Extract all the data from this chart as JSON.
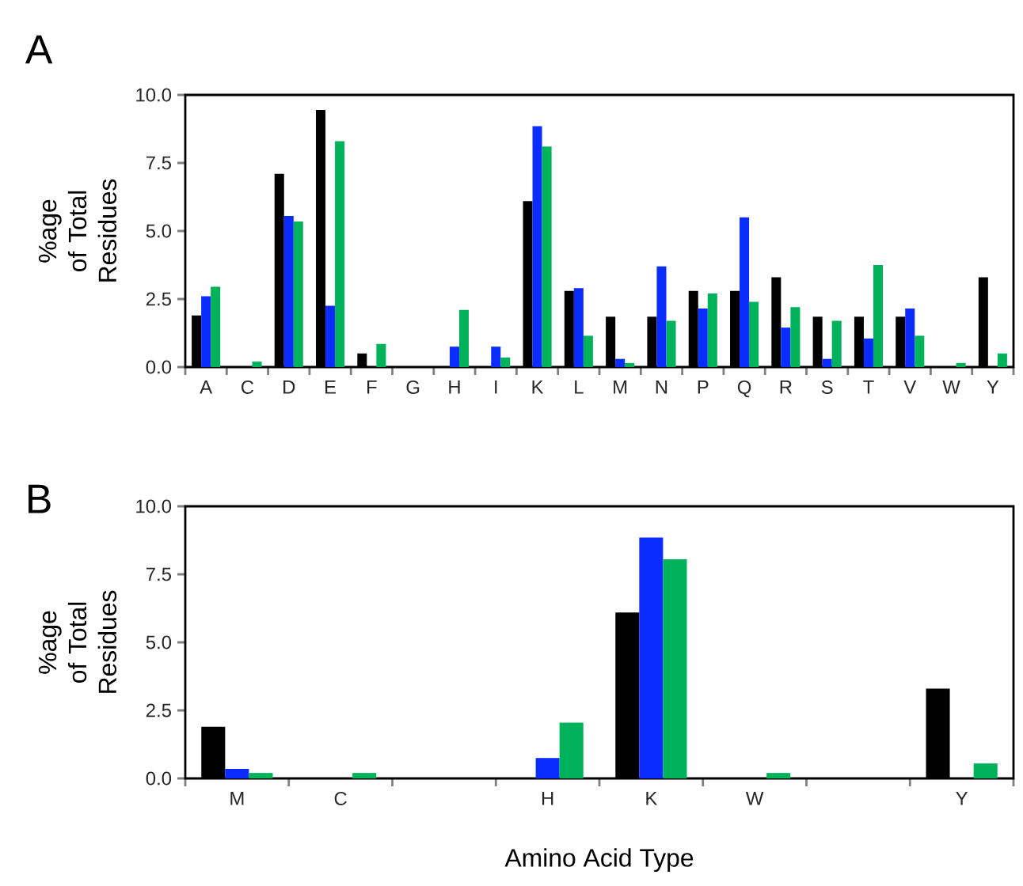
{
  "chart_data": [
    {
      "type": "bar",
      "title": "A",
      "ylabel": "%age of Total Residues",
      "categories": [
        "A",
        "C",
        "D",
        "E",
        "F",
        "G",
        "H",
        "I",
        "K",
        "L",
        "M",
        "N",
        "P",
        "Q",
        "R",
        "S",
        "T",
        "V",
        "W",
        "Y"
      ],
      "series": [
        {
          "color": "#000000",
          "values": [
            1.9,
            0,
            7.1,
            9.45,
            0.5,
            0,
            0,
            0,
            6.1,
            2.8,
            1.85,
            1.85,
            2.8,
            2.8,
            3.3,
            1.85,
            1.85,
            1.85,
            0,
            3.3
          ]
        },
        {
          "color": "#0a2cff",
          "values": [
            2.6,
            0,
            5.55,
            2.25,
            0,
            0,
            0.75,
            0.75,
            8.85,
            2.9,
            0.3,
            3.7,
            2.15,
            5.5,
            1.45,
            0.3,
            1.05,
            2.15,
            0,
            0
          ]
        },
        {
          "color": "#00b35a",
          "values": [
            2.95,
            0.2,
            5.35,
            8.3,
            0.85,
            0,
            2.1,
            0.35,
            8.1,
            1.15,
            0.15,
            1.7,
            2.7,
            2.4,
            2.2,
            1.7,
            3.75,
            1.15,
            0.15,
            0.5
          ]
        }
      ],
      "ylim": [
        0,
        10
      ],
      "yticks": [
        {
          "value": 0,
          "label": "0.0"
        },
        {
          "value": 2.5,
          "label": "2.5"
        },
        {
          "value": 5,
          "label": "5.0"
        },
        {
          "value": 7.5,
          "label": "7.5"
        },
        {
          "value": 10,
          "label": "10.0"
        }
      ]
    },
    {
      "type": "bar",
      "title": "B",
      "ylabel": "%age of Total Residues",
      "xlabel": "Amino Acid Type",
      "categories": [
        "M",
        "C",
        null,
        "H",
        "K",
        "W",
        null,
        "Y"
      ],
      "series": [
        {
          "color": "#000000",
          "values": [
            1.9,
            0,
            null,
            0,
            6.1,
            0,
            null,
            3.3
          ]
        },
        {
          "color": "#0a2cff",
          "values": [
            0.35,
            0,
            null,
            0.75,
            8.85,
            0,
            null,
            0
          ]
        },
        {
          "color": "#00b35a",
          "values": [
            0.2,
            0.2,
            null,
            2.05,
            8.05,
            0.2,
            null,
            0.55
          ]
        }
      ],
      "ylim": [
        0,
        10
      ],
      "yticks": [
        {
          "value": 0,
          "label": "0.0"
        },
        {
          "value": 2.5,
          "label": "2.5"
        },
        {
          "value": 5,
          "label": "5.0"
        },
        {
          "value": 7.5,
          "label": "7.5"
        },
        {
          "value": 10,
          "label": "10.0"
        }
      ]
    }
  ]
}
